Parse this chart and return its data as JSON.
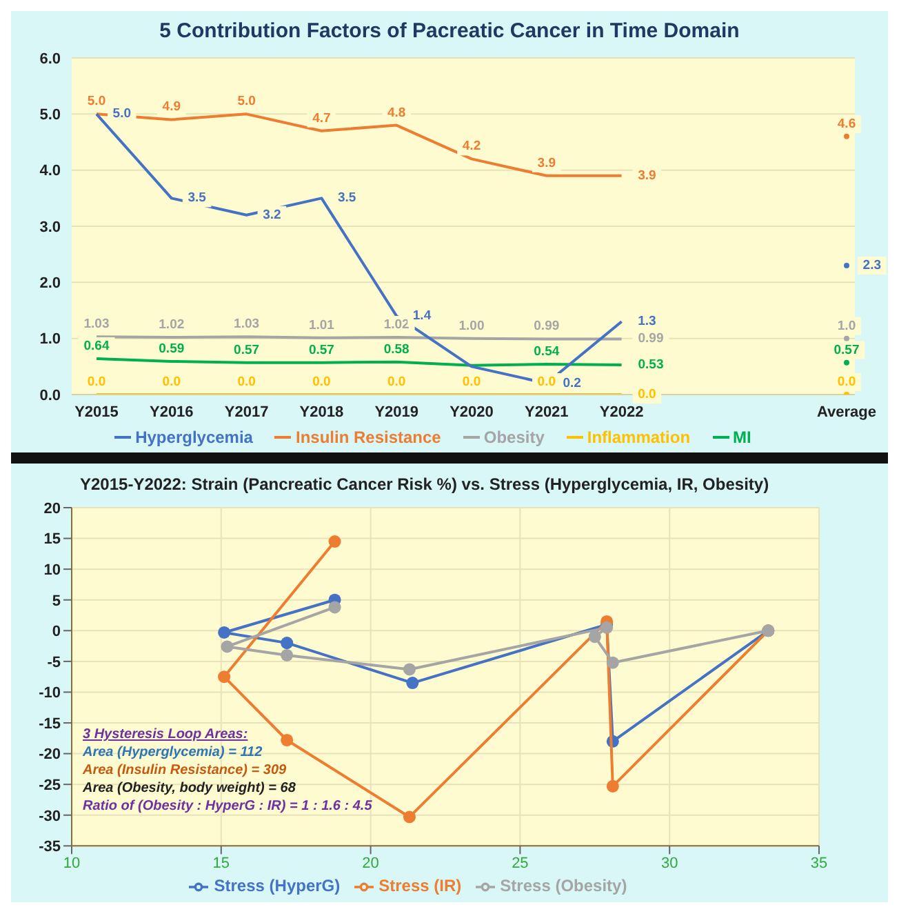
{
  "chart_data": [
    {
      "type": "line",
      "title": "5 Contribution Factors of Pacreatic Cancer in Time Domain",
      "categories": [
        "Y2015",
        "Y2016",
        "Y2017",
        "Y2018",
        "Y2019",
        "Y2020",
        "Y2021",
        "Y2022",
        null,
        null,
        "Average"
      ],
      "series": [
        {
          "name": "Hyperglycemia",
          "color": "#4472c4",
          "values": [
            5.0,
            3.5,
            3.2,
            3.5,
            1.4,
            0.5,
            0.2,
            1.3,
            null,
            null,
            2.3
          ],
          "value_labels": [
            "5.0",
            "3.5",
            "3.2",
            "3.5",
            "1.4",
            null,
            "0.2",
            "1.3",
            null,
            null,
            "2.3"
          ]
        },
        {
          "name": "Insulin Resistance",
          "color": "#ed7d31",
          "values": [
            5.0,
            4.9,
            5.0,
            4.7,
            4.8,
            4.2,
            3.9,
            3.9,
            null,
            null,
            4.6
          ],
          "value_labels": [
            "5.0",
            "4.9",
            "5.0",
            "4.7",
            "4.8",
            "4.2",
            "3.9",
            "3.9",
            null,
            null,
            "4.6"
          ]
        },
        {
          "name": "Obesity",
          "color": "#a5a5a5",
          "values": [
            1.03,
            1.02,
            1.03,
            1.01,
            1.02,
            1.0,
            0.99,
            0.99,
            null,
            null,
            1.0
          ],
          "value_labels": [
            "1.03",
            "1.02",
            "1.03",
            "1.01",
            "1.02",
            "1.00",
            "0.99",
            "0.99",
            null,
            null,
            "1.0"
          ]
        },
        {
          "name": "Inflammation",
          "color": "#ffc000",
          "values": [
            0,
            0,
            0,
            0,
            0,
            0,
            0,
            0,
            null,
            null,
            0
          ],
          "value_labels": [
            "0.0",
            "0.0",
            "0.0",
            "0.0",
            "0.0",
            "0.0",
            "0.0",
            "0.0",
            null,
            null,
            "0.0"
          ]
        },
        {
          "name": "MI",
          "color": "#00b050",
          "values": [
            0.64,
            0.59,
            0.57,
            0.57,
            0.58,
            0.52,
            0.54,
            0.53,
            null,
            null,
            0.57
          ],
          "value_labels": [
            "0.64",
            "0.59",
            "0.57",
            "0.57",
            "0.58",
            null,
            "0.54",
            "0.53",
            null,
            null,
            "0.57"
          ]
        }
      ],
      "ylim": [
        0,
        6
      ],
      "yticks": [
        {
          "value": 0,
          "label": "0.0"
        },
        {
          "value": 1,
          "label": "1.0"
        },
        {
          "value": 2,
          "label": "2.0"
        },
        {
          "value": 3,
          "label": "3.0"
        },
        {
          "value": 4,
          "label": "4.0"
        },
        {
          "value": 5,
          "label": "5.0"
        },
        {
          "value": 6,
          "label": "6.0"
        }
      ],
      "grid": "y",
      "legend": "bottom",
      "marker": "none",
      "line_style": "solid"
    },
    {
      "type": "line",
      "title": "Y2015-Y2022:  Strain (Pancreatic Cancer Risk %) vs. Stress (Hyperglycemia, IR, Obesity)",
      "series": [
        {
          "name": "Stress (HyperG)",
          "color": "#4472c4",
          "x": [
            18.8,
            15.1,
            17.2,
            21.4,
            27.9,
            28.1,
            33.3
          ],
          "values": [
            5,
            -0.3,
            -2,
            -8.5,
            1,
            -18,
            0
          ]
        },
        {
          "name": "Stress (IR)",
          "color": "#ed7d31",
          "x": [
            18.8,
            15.1,
            17.2,
            21.3,
            27.9,
            28.1,
            33.3
          ],
          "values": [
            14.5,
            -7.5,
            -17.8,
            -30.3,
            1.5,
            -25.3,
            0
          ]
        },
        {
          "name": "Stress (Obesity)",
          "color": "#a5a5a5",
          "x": [
            18.8,
            15.2,
            17.2,
            21.3,
            27.9,
            27.5,
            28.1,
            33.3
          ],
          "values": [
            3.8,
            -2.6,
            -4,
            -6.3,
            0.5,
            -1,
            -5.2,
            0
          ]
        }
      ],
      "xlim": [
        10,
        35
      ],
      "xticks": [
        10,
        15,
        20,
        25,
        30,
        35
      ],
      "ylim": [
        -35,
        20
      ],
      "yticks": [
        -35,
        -30,
        -25,
        -20,
        -15,
        -10,
        -5,
        0,
        5,
        10,
        15,
        20
      ],
      "annotations": [
        "3 Hysteresis Loop Areas:",
        "Area (Hyperglycemia) = 112",
        "Area (Insulin Resistance) = 309",
        "Area (Obesity, body weight) = 68",
        "Ratio of (Obesity : HyperG : IR) = 1 : 1.6 : 4.5"
      ],
      "grid": true,
      "legend": "bottom",
      "marker": "circle",
      "line_style": "solid"
    }
  ]
}
